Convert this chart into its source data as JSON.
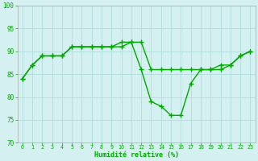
{
  "line1_x": [
    0,
    1,
    2,
    3,
    4,
    5,
    6,
    7,
    8,
    9,
    10,
    11,
    12,
    13,
    14,
    15,
    16,
    17,
    18,
    19,
    20,
    21,
    22,
    23
  ],
  "line1_y": [
    84,
    87,
    89,
    89,
    89,
    91,
    91,
    91,
    91,
    91,
    91,
    92,
    92,
    86,
    86,
    86,
    86,
    86,
    86,
    86,
    87,
    87,
    89,
    90
  ],
  "line2_x": [
    0,
    1,
    2,
    3,
    4,
    5,
    6,
    7,
    8,
    9,
    10,
    11,
    12,
    13,
    14,
    15,
    16,
    17,
    18,
    19,
    20,
    21,
    22,
    23
  ],
  "line2_y": [
    84,
    87,
    89,
    89,
    89,
    91,
    91,
    91,
    91,
    91,
    92,
    92,
    86,
    79,
    78,
    76,
    76,
    83,
    86,
    86,
    86,
    87,
    89,
    90
  ],
  "xlabel": "Humidité relative (%)",
  "xlim": [
    -0.5,
    23.5
  ],
  "ylim": [
    70,
    100
  ],
  "yticks": [
    70,
    75,
    80,
    85,
    90,
    95,
    100
  ],
  "xticks": [
    0,
    1,
    2,
    3,
    4,
    5,
    6,
    7,
    8,
    9,
    10,
    11,
    12,
    13,
    14,
    15,
    16,
    17,
    18,
    19,
    20,
    21,
    22,
    23
  ],
  "xtick_labels": [
    "0",
    "1",
    "2",
    "3",
    "4",
    "5",
    "6",
    "7",
    "8",
    "9",
    "10",
    "11",
    "12",
    "13",
    "14",
    "15",
    "16",
    "17",
    "18",
    "19",
    "20",
    "21",
    "22",
    "23"
  ],
  "background_color": "#d4f0f0",
  "grid_color": "#b0dede",
  "line_color": "#00aa00",
  "tick_color": "#00aa00",
  "label_color": "#00aa00",
  "linewidth": 1.0,
  "markersize": 4,
  "markeredgewidth": 1.0
}
